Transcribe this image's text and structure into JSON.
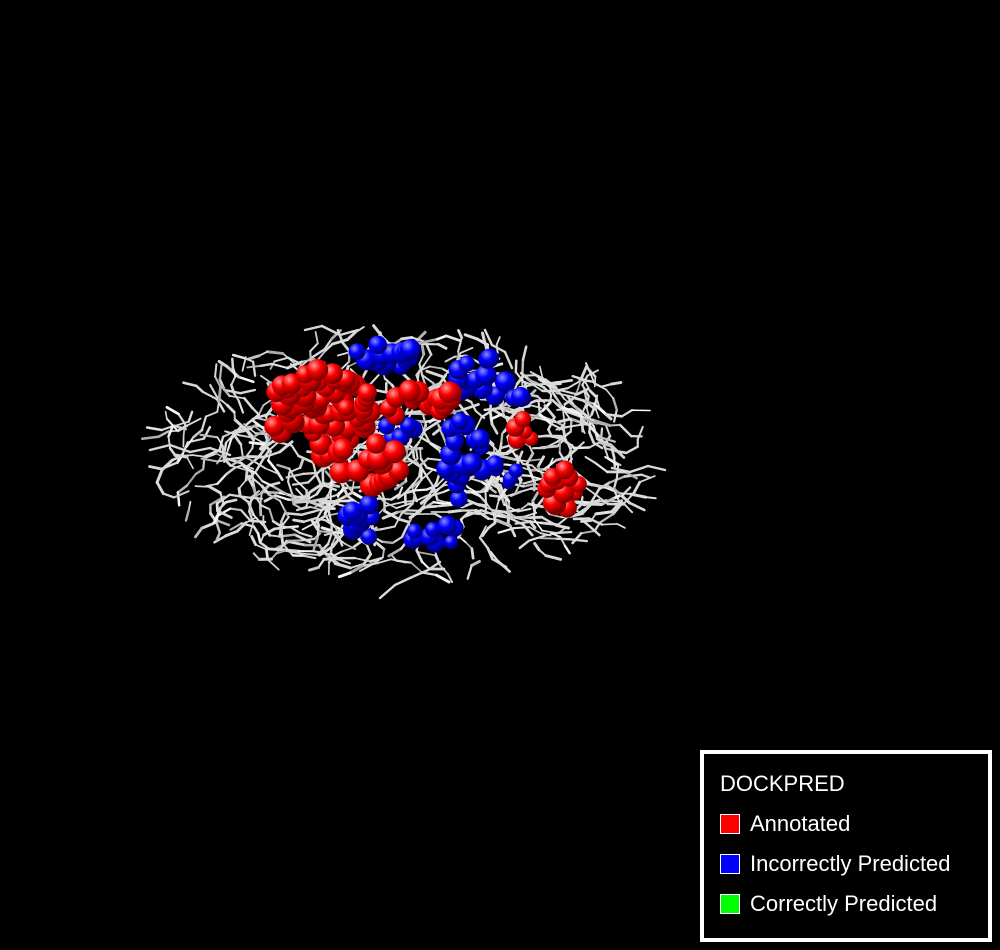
{
  "viewer": {
    "background_color": "#000000",
    "structure_color": "#d9d9d9"
  },
  "legend": {
    "title": "DOCKPRED",
    "items": [
      {
        "label": "Annotated",
        "color": "#ff0000"
      },
      {
        "label": "Incorrectly Predicted",
        "color": "#0000ff"
      },
      {
        "label": "Correctly Predicted",
        "color": "#00ff00"
      }
    ]
  }
}
